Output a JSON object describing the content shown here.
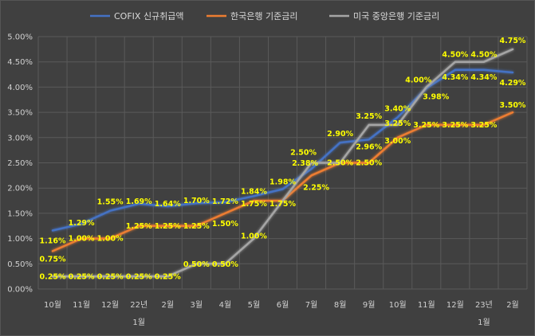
{
  "chart_data": {
    "type": "line",
    "categories": [
      "10월",
      "11월",
      "12월",
      "22년",
      "2월",
      "3월",
      "4월",
      "5월",
      "6월",
      "7월",
      "8월",
      "9월",
      "10월",
      "11월",
      "12월",
      "23년",
      "2월"
    ],
    "category_sublabels": [
      {
        "index": 3,
        "text": "1월"
      },
      {
        "index": 15,
        "text": "1월"
      }
    ],
    "yticks": [
      "0.00%",
      "0.50%",
      "1.00%",
      "1.50%",
      "2.00%",
      "2.50%",
      "3.00%",
      "3.50%",
      "4.00%",
      "4.50%",
      "5.00%"
    ],
    "ylim": [
      0,
      5
    ],
    "grid": true,
    "legend_position": "top",
    "series": [
      {
        "name": "COFIX 신규취급액",
        "color": "#4472c4",
        "values": [
          1.16,
          1.29,
          1.55,
          1.69,
          1.64,
          1.7,
          1.72,
          1.84,
          1.98,
          2.38,
          2.9,
          2.96,
          3.4,
          3.98,
          4.34,
          4.34,
          4.29
        ],
        "labels": [
          "1.16%",
          "1.29%",
          "1.55%",
          "1.69%",
          "1.64%",
          "1.70%",
          "1.72%",
          "1.84%",
          "1.98%",
          "2.38%",
          "2.90%",
          "2.96%",
          "3.40%",
          "3.98%",
          "4.34%",
          "4.34%",
          "4.29%"
        ]
      },
      {
        "name": "한국은행 기준금리",
        "color": "#ed7d31",
        "values": [
          0.75,
          1.0,
          1.0,
          1.25,
          1.25,
          1.25,
          1.5,
          1.75,
          1.75,
          2.25,
          2.5,
          2.5,
          3.0,
          3.25,
          3.25,
          3.25,
          3.5
        ],
        "labels": [
          "0.75%",
          "1.00%",
          "1.00%",
          "1.25%",
          "1.25%",
          "1.25%",
          "1.50%",
          "1.75%",
          "1.75%",
          "2.25%",
          "2.50%",
          "2.50%",
          "3.00%",
          "3.25%",
          "3.25%",
          "3.25%",
          "3.50%"
        ]
      },
      {
        "name": "미국 중앙은행 기준금리",
        "color": "#a5a5a5",
        "values": [
          0.25,
          0.25,
          0.25,
          0.25,
          0.25,
          0.5,
          0.5,
          1.0,
          1.75,
          2.5,
          2.5,
          3.25,
          3.25,
          4.0,
          4.5,
          4.5,
          4.75
        ],
        "labels": [
          "0.25%",
          "0.25%",
          "0.25%",
          "0.25%",
          "0.25%",
          "0.50%",
          "0.50%",
          "1.00%",
          "",
          "2.50%",
          "",
          "3.25%",
          "3.25%",
          "4.00%",
          "4.50%",
          "4.50%",
          "4.75%"
        ]
      }
    ]
  }
}
